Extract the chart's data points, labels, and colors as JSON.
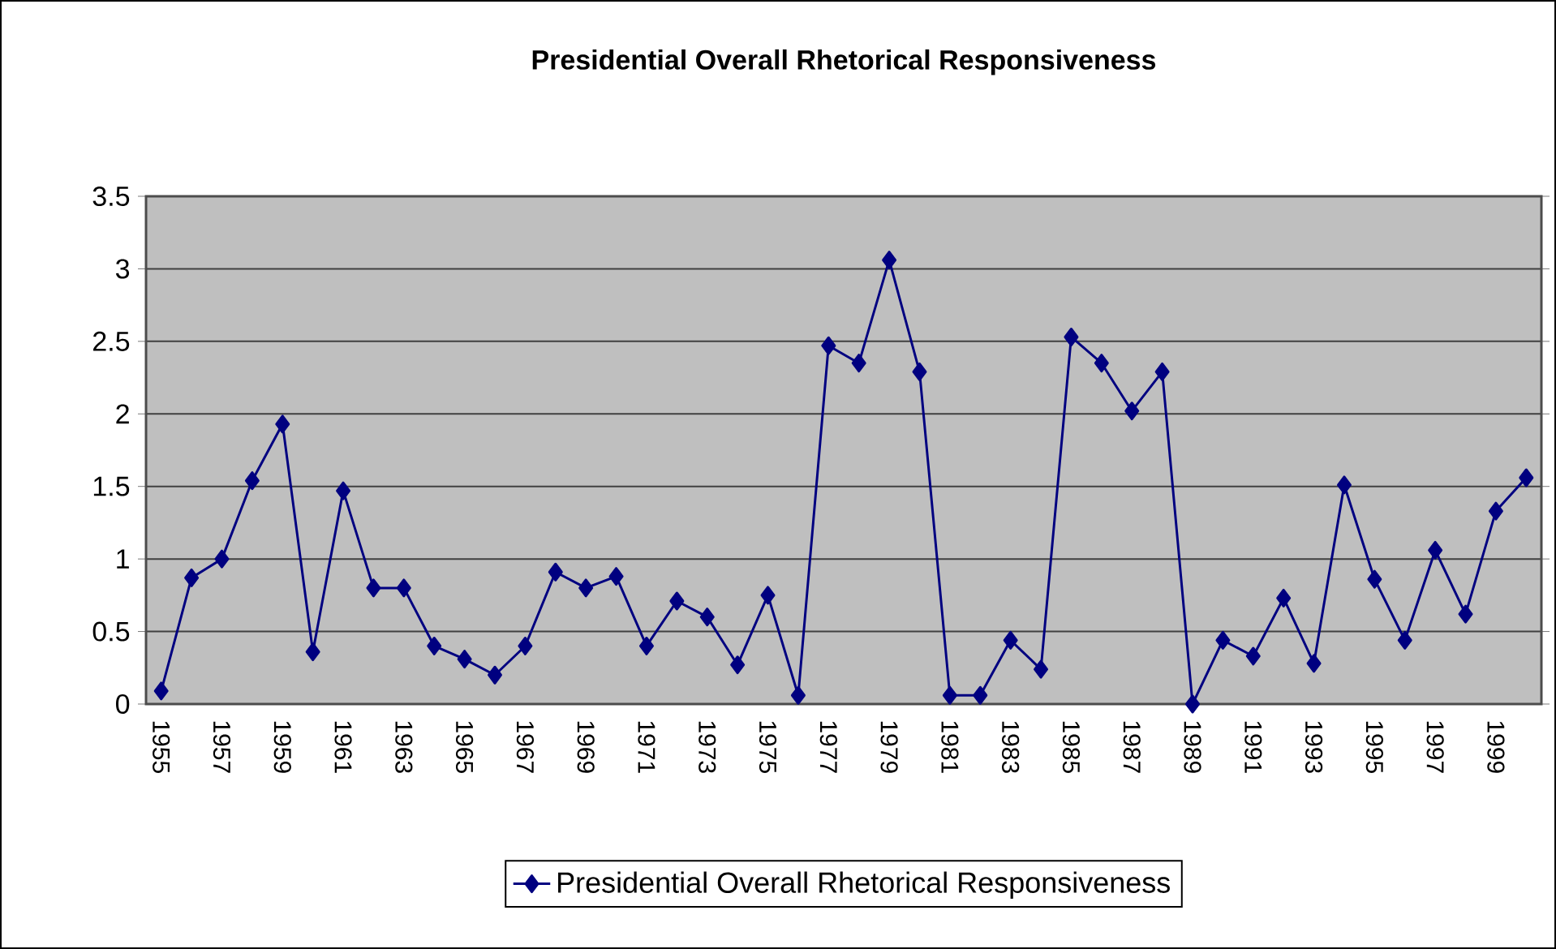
{
  "chart_data": {
    "type": "line",
    "title": "Presidential Overall Rhetorical Responsiveness",
    "categories": [
      "1955",
      null,
      "1957",
      null,
      "1959",
      null,
      "1961",
      null,
      "1963",
      null,
      "1965",
      null,
      "1967",
      null,
      "1969",
      null,
      "1971",
      null,
      "1973",
      null,
      "1975",
      null,
      "1977",
      null,
      "1979",
      null,
      "1981",
      null,
      "1983",
      null,
      "1985",
      null,
      "1987",
      null,
      "1989",
      null,
      "1991",
      null,
      "1993",
      null,
      "1995",
      null,
      "1997",
      null,
      "1999",
      null
    ],
    "series": [
      {
        "name": "Presidential Overall Rhetorical Responsiveness",
        "color": "#000080",
        "values": [
          0.09,
          0.87,
          1.0,
          1.54,
          1.93,
          0.36,
          1.47,
          0.8,
          0.8,
          0.4,
          0.31,
          0.2,
          0.4,
          0.91,
          0.8,
          0.88,
          0.4,
          0.71,
          0.6,
          0.27,
          0.75,
          0.06,
          2.47,
          2.35,
          3.06,
          2.29,
          0.06,
          0.06,
          0.44,
          0.24,
          2.53,
          2.35,
          2.02,
          2.29,
          0.0,
          0.44,
          0.33,
          0.73,
          0.28,
          1.51,
          0.86,
          0.44,
          1.06,
          0.62,
          1.33,
          1.56
        ]
      }
    ],
    "ylim": [
      0,
      3.5
    ],
    "yticks": [
      0,
      0.5,
      1,
      1.5,
      2,
      2.5,
      3,
      3.5
    ],
    "grid": "y",
    "legend": "bottom",
    "marker": "diamond",
    "line_style": "solid"
  }
}
